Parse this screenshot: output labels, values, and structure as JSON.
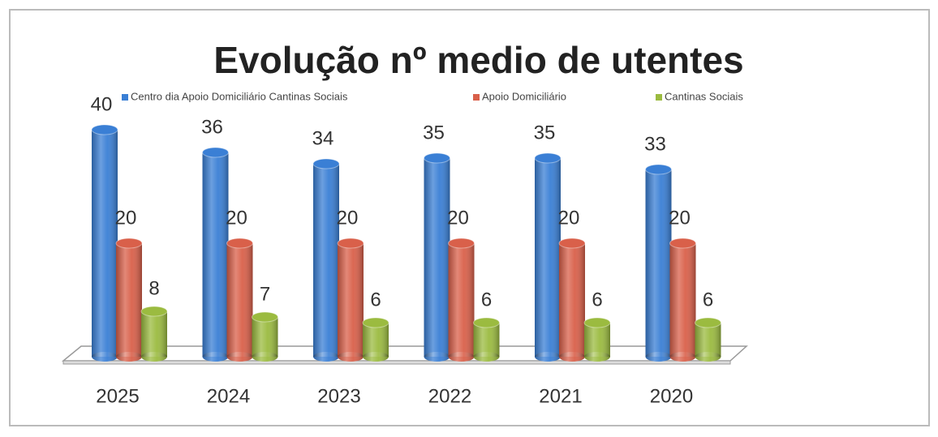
{
  "chart_data": {
    "type": "bar",
    "title": "Evolução nº medio de utentes",
    "categories": [
      "2025",
      "2024",
      "2023",
      "2022",
      "2021",
      "2020"
    ],
    "series": [
      {
        "name": "Centro dia Apoio Domiciliário Cantinas Sociais",
        "color": "#3a7fd5",
        "values": [
          40,
          36,
          34,
          35,
          35,
          33
        ]
      },
      {
        "name": "Apoio Domiciliário",
        "color": "#d9604a",
        "values": [
          20,
          20,
          20,
          20,
          20,
          20
        ]
      },
      {
        "name": "Cantinas Sociais",
        "color": "#9bbb40",
        "values": [
          8,
          7,
          6,
          6,
          6,
          6
        ]
      }
    ],
    "legend": "top"
  }
}
